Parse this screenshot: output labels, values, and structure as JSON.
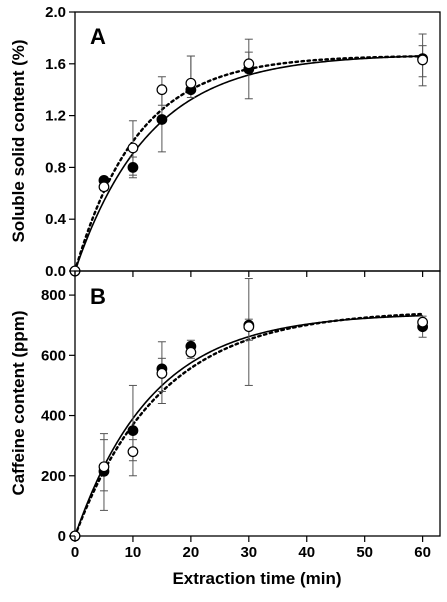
{
  "chart_data": [
    {
      "type": "scatter",
      "panel_label": "A",
      "xlabel": "",
      "ylabel": "Soluble solid content (%)",
      "x_ticks": [
        "0",
        "10",
        "20",
        "30",
        "40",
        "50",
        "60"
      ],
      "x_tick_values": [
        0,
        10,
        20,
        30,
        40,
        50,
        60
      ],
      "y_ticks": [
        "0.0",
        "0.4",
        "0.8",
        "1.2",
        "1.6",
        "2.0"
      ],
      "y_tick_values": [
        0,
        0.4,
        0.8,
        1.2,
        1.6,
        2.0
      ],
      "xlim": [
        0,
        63
      ],
      "ylim": [
        0,
        2.0
      ],
      "grid": false,
      "series": [
        {
          "marker": "filled-circle",
          "x": [
            0,
            5,
            10,
            15,
            20,
            30,
            60
          ],
          "y": [
            0.0,
            0.7,
            0.8,
            1.17,
            1.4,
            1.56,
            1.64
          ],
          "err_low": [
            0,
            0.64,
            0.72,
            0.92,
            1.34,
            1.33,
            1.43
          ],
          "err_high": [
            0,
            0.72,
            0.88,
            1.42,
            1.66,
            1.79,
            1.83
          ]
        },
        {
          "marker": "open-circle",
          "x": [
            0,
            5,
            10,
            15,
            20,
            30,
            60
          ],
          "y": [
            0.0,
            0.65,
            0.95,
            1.4,
            1.45,
            1.6,
            1.63
          ],
          "err_low": [
            0,
            0.62,
            0.74,
            1.28,
            1.38,
            1.53,
            1.5
          ],
          "err_high": [
            0,
            0.68,
            1.16,
            1.5,
            1.66,
            1.69,
            1.74
          ]
        }
      ],
      "fits": [
        {
          "style": "solid",
          "ymax": 1.675,
          "k": 0.078
        },
        {
          "style": "dotted",
          "ymax": 1.665,
          "k": 0.092
        }
      ]
    },
    {
      "type": "scatter",
      "panel_label": "B",
      "xlabel": "Extraction time (min)",
      "ylabel": "Caffeine content (ppm)",
      "x_ticks": [
        "0",
        "10",
        "20",
        "30",
        "40",
        "50",
        "60"
      ],
      "x_tick_values": [
        0,
        10,
        20,
        30,
        40,
        50,
        60
      ],
      "y_ticks": [
        "0",
        "200",
        "400",
        "600",
        "800"
      ],
      "y_tick_values": [
        0,
        200,
        400,
        600,
        800
      ],
      "xlim": [
        0,
        63
      ],
      "ylim": [
        0,
        880
      ],
      "grid": false,
      "series": [
        {
          "marker": "filled-circle",
          "x": [
            0,
            5,
            10,
            15,
            20,
            30,
            60
          ],
          "y": [
            0,
            215,
            350,
            555,
            630,
            700,
            695
          ],
          "err_low": [
            0,
            85,
            250,
            440,
            600,
            500,
            660
          ],
          "err_high": [
            0,
            320,
            500,
            645,
            650,
            855,
            715
          ]
        },
        {
          "marker": "open-circle",
          "x": [
            0,
            5,
            10,
            15,
            20,
            30,
            60
          ],
          "y": [
            0,
            230,
            280,
            540,
            610,
            695,
            710
          ],
          "err_low": [
            0,
            150,
            200,
            480,
            590,
            650,
            690
          ],
          "err_high": [
            0,
            340,
            320,
            590,
            620,
            720,
            730
          ]
        }
      ],
      "fits": [
        {
          "style": "solid",
          "ymax": 740,
          "k": 0.075
        },
        {
          "style": "dotted",
          "ymax": 750,
          "k": 0.068
        }
      ]
    }
  ]
}
